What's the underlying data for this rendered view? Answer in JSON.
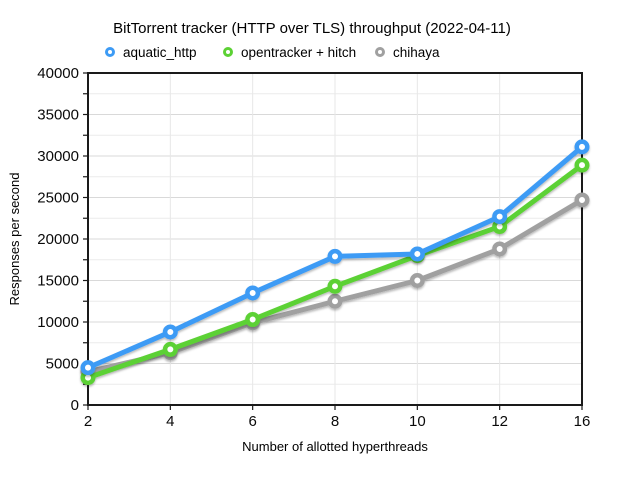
{
  "chart_data": {
    "type": "line",
    "title": "BitTorrent tracker (HTTP over TLS) throughput (2022-04-11)",
    "xlabel": "Number of allotted hyperthreads",
    "ylabel": "Responses per second",
    "categories": [
      "2",
      "4",
      "6",
      "8",
      "10",
      "12",
      "16"
    ],
    "series": [
      {
        "name": "aquatic_http",
        "color": "#3d9bf5",
        "marker": "open-circle",
        "values": [
          4500,
          8800,
          13500,
          17900,
          18200,
          22700,
          31100
        ]
      },
      {
        "name": "opentracker + hitch",
        "color": "#5cd134",
        "marker": "open-circle",
        "values": [
          3300,
          6700,
          10300,
          14300,
          18000,
          21500,
          28900
        ]
      },
      {
        "name": "chihaya",
        "color": "#a0a0a0",
        "marker": "open-circle",
        "values": [
          4000,
          6300,
          9900,
          12500,
          15000,
          18800,
          24700
        ]
      }
    ],
    "ylim": [
      0,
      40000
    ],
    "y_major_step": 5000,
    "y_minor_step": 2500,
    "grid": true,
    "legend_position": "top"
  }
}
